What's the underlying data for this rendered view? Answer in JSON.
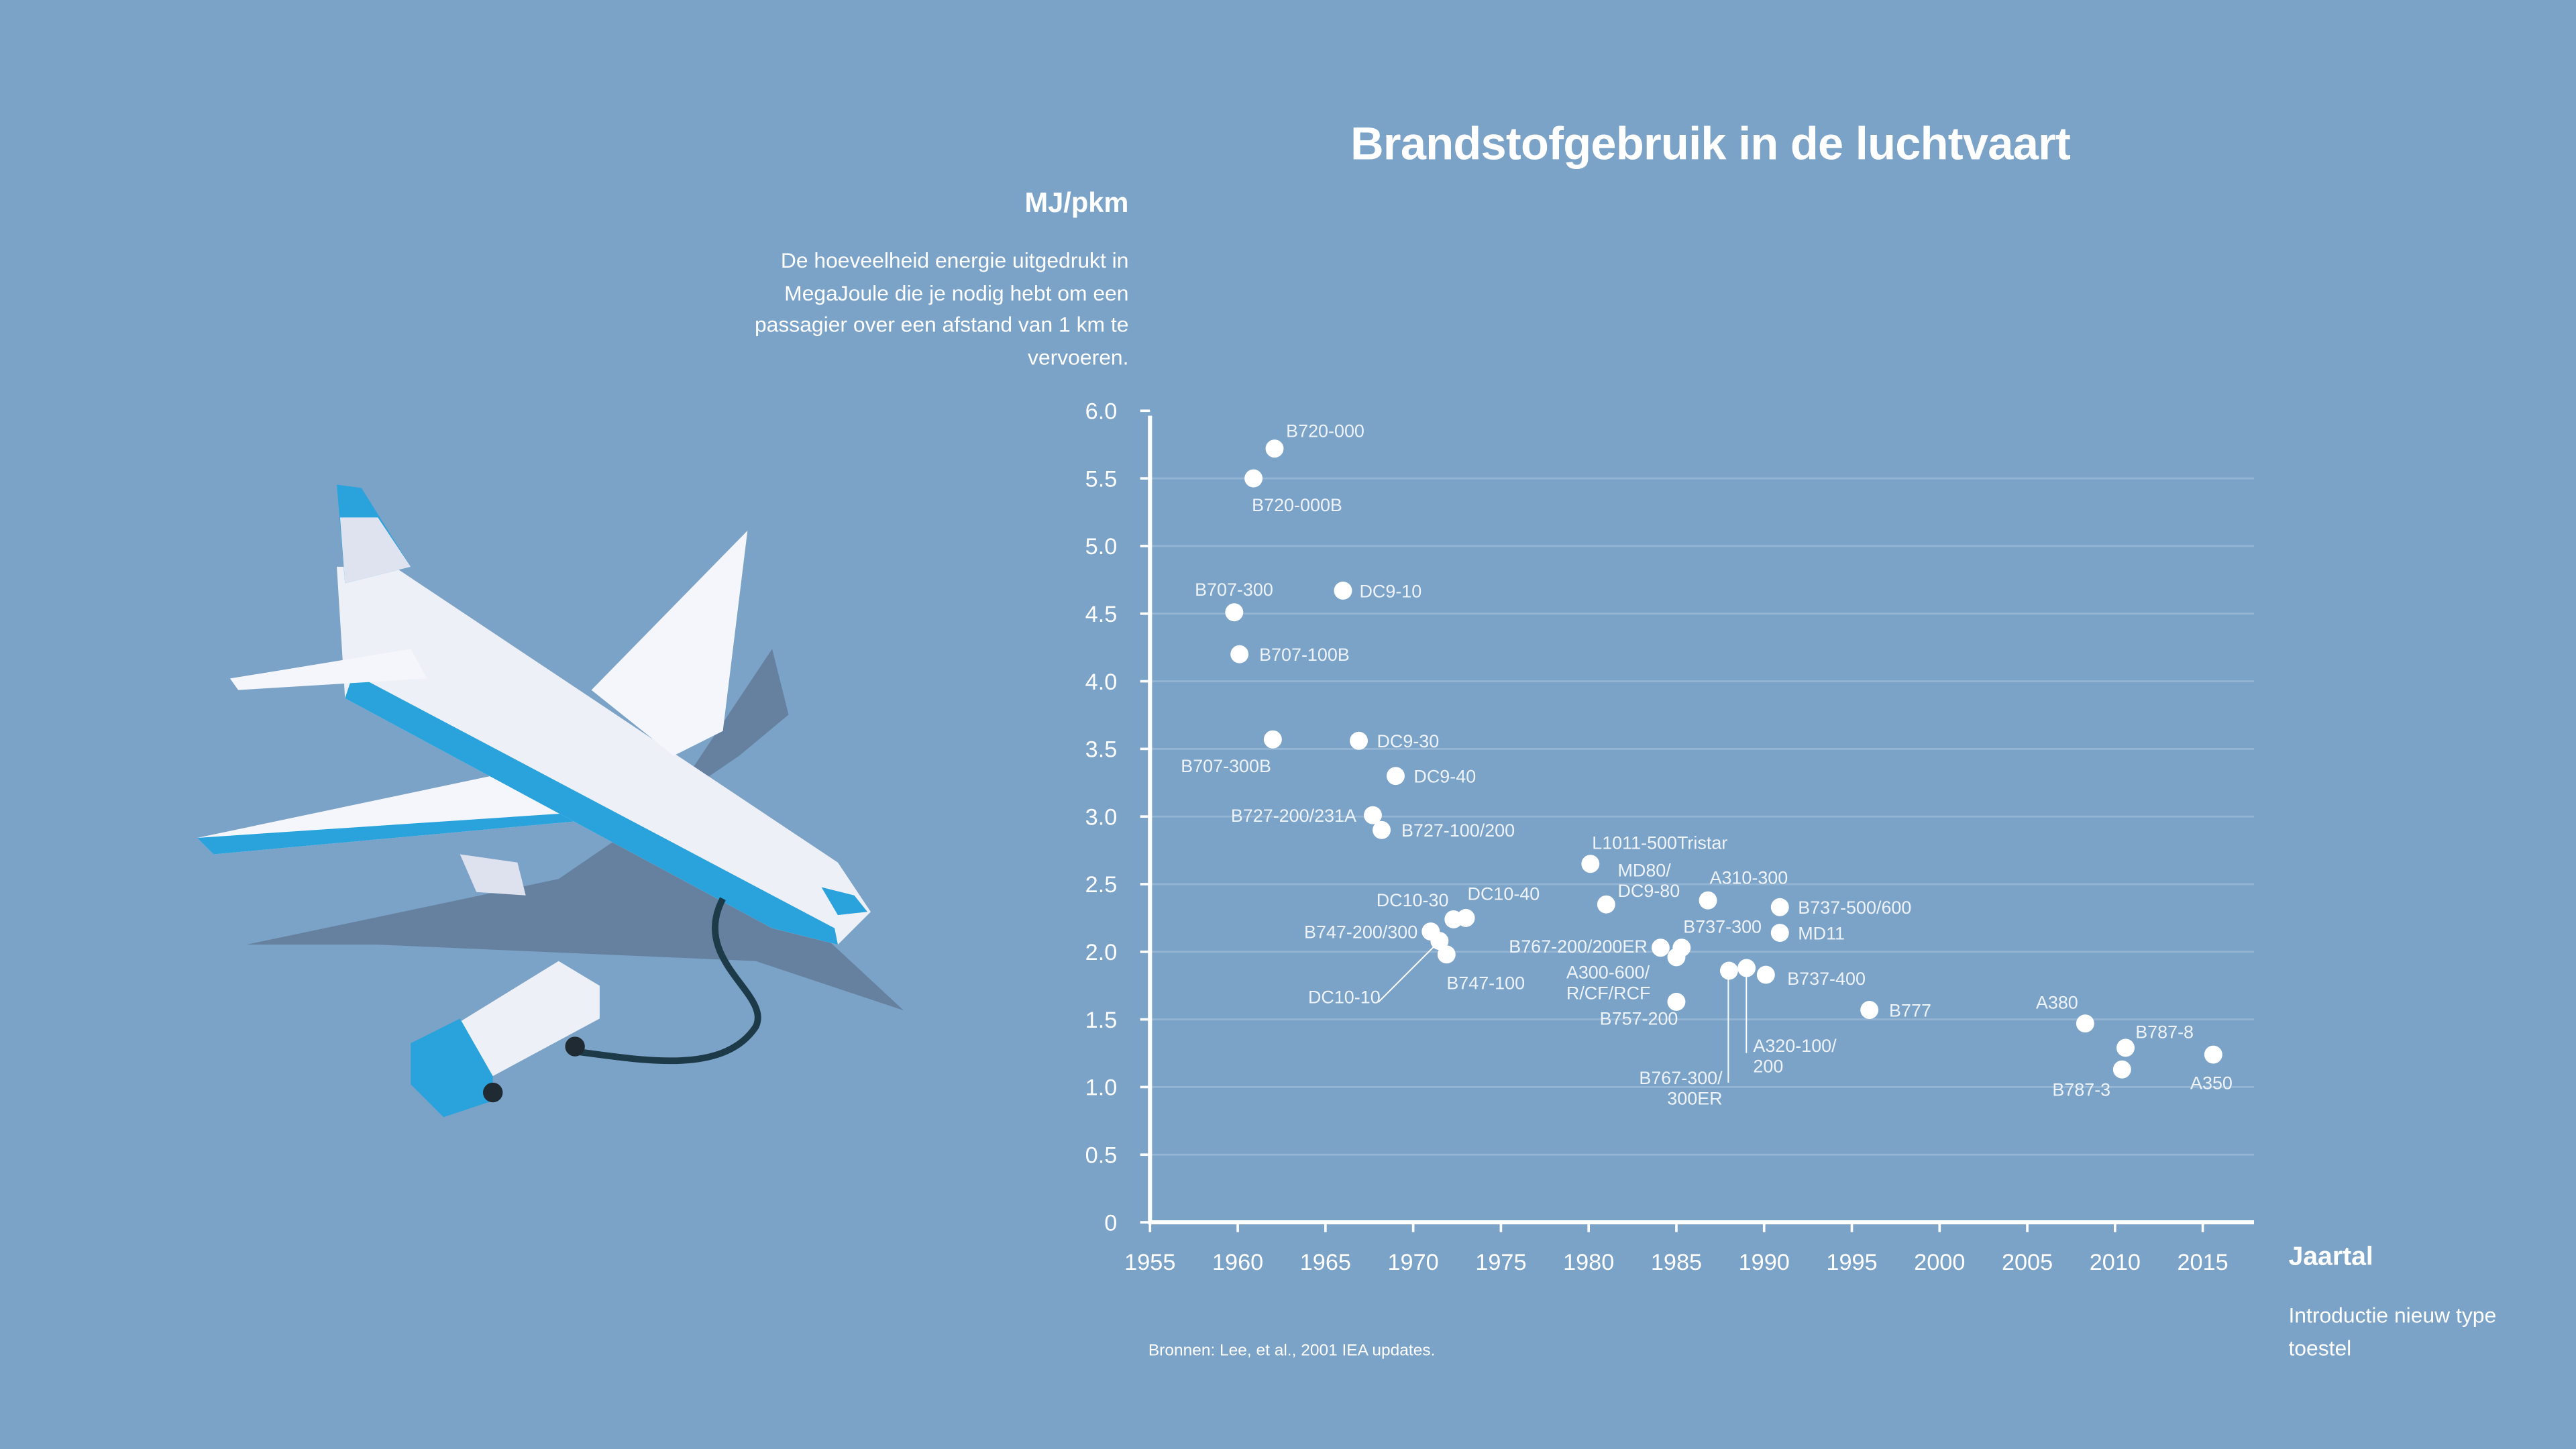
{
  "title": "Brandstofgebruik in de luchtvaart",
  "y_axis": {
    "unit": "MJ/pkm",
    "description": "De hoeveelheid energie uitgedrukt in MegaJoule die je nodig hebt om een passagier over een afstand van 1 km te vervoeren."
  },
  "x_axis": {
    "unit": "Jaartal",
    "description": "Introductie nieuw type toestel"
  },
  "source": "Bronnen: Lee, et al., 2001 IEA updates.",
  "colors": {
    "background": "#7ba2c7",
    "points": "#ffffff",
    "grid": "#93b4d3"
  },
  "chart_data": {
    "type": "scatter",
    "title": "Brandstofgebruik in de luchtvaart",
    "xlabel": "Jaartal",
    "ylabel": "MJ/pkm",
    "xlim": [
      1955,
      2017
    ],
    "ylim": [
      0,
      6.0
    ],
    "x_ticks": [
      "1955",
      "1960",
      "1965",
      "1970",
      "1975",
      "1980",
      "1985",
      "1990",
      "1995",
      "2000",
      "2005",
      "2010",
      "2015"
    ],
    "y_ticks": [
      "0",
      "0.5",
      "1.0",
      "1.5",
      "2.0",
      "2.5",
      "3.0",
      "3.5",
      "4.0",
      "4.5",
      "5.0",
      "5.5",
      "6.0"
    ],
    "grid": "horizontal",
    "points": [
      {
        "label": [
          "B720-000"
        ],
        "x": 1962.1,
        "y": 5.72
      },
      {
        "label": [
          "B720-000B"
        ],
        "x": 1960.9,
        "y": 5.5
      },
      {
        "label": [
          "B707-300"
        ],
        "x": 1959.8,
        "y": 4.51
      },
      {
        "label": [
          "DC9-10"
        ],
        "x": 1966.0,
        "y": 4.67
      },
      {
        "label": [
          "B707-100B"
        ],
        "x": 1960.1,
        "y": 4.2
      },
      {
        "label": [
          "B707-300B"
        ],
        "x": 1962.0,
        "y": 3.57
      },
      {
        "label": [
          "DC9-30"
        ],
        "x": 1966.9,
        "y": 3.56
      },
      {
        "label": [
          "DC9-40"
        ],
        "x": 1969.0,
        "y": 3.3
      },
      {
        "label": [
          "B727-200/231A"
        ],
        "x": 1967.7,
        "y": 3.01
      },
      {
        "label": [
          "B727-100/200"
        ],
        "x": 1968.2,
        "y": 2.9
      },
      {
        "label": [
          "L1011-500Tristar"
        ],
        "x": 1980.1,
        "y": 2.65
      },
      {
        "label": [
          "MD80/",
          "DC9-80"
        ],
        "x": 1981.0,
        "y": 2.35
      },
      {
        "label": [
          "A310-300"
        ],
        "x": 1986.8,
        "y": 2.38
      },
      {
        "label": [
          "B737-500/600"
        ],
        "x": 1990.9,
        "y": 2.33
      },
      {
        "label": [
          "MD11"
        ],
        "x": 1990.9,
        "y": 2.14
      },
      {
        "label": [
          "DC10-30"
        ],
        "x": 1972.3,
        "y": 2.24
      },
      {
        "label": [
          "DC10-40"
        ],
        "x": 1973.0,
        "y": 2.25
      },
      {
        "label": [
          "B747-200/300"
        ],
        "x": 1971.0,
        "y": 2.15
      },
      {
        "label": [
          "DC10-10"
        ],
        "x": 1971.5,
        "y": 2.08
      },
      {
        "label": [
          "B747-100"
        ],
        "x": 1971.9,
        "y": 1.98
      },
      {
        "label": [
          "B767-200/200ER"
        ],
        "x": 1984.1,
        "y": 2.03
      },
      {
        "label": [
          "B737-300"
        ],
        "x": 1985.3,
        "y": 2.03
      },
      {
        "label": [
          "A300-600/",
          "R/CF/RCF"
        ],
        "x": 1985.0,
        "y": 1.96
      },
      {
        "label": [
          "B767-300/",
          "300ER"
        ],
        "x": 1988.0,
        "y": 1.86
      },
      {
        "label": [
          "A320-100/",
          "200"
        ],
        "x": 1989.0,
        "y": 1.88
      },
      {
        "label": [
          "B737-400"
        ],
        "x": 1990.1,
        "y": 1.83
      },
      {
        "label": [
          "B757-200"
        ],
        "x": 1985.0,
        "y": 1.63
      },
      {
        "label": [
          "B777"
        ],
        "x": 1996.0,
        "y": 1.57
      },
      {
        "label": [
          "A380"
        ],
        "x": 2008.3,
        "y": 1.47
      },
      {
        "label": [
          "B787-8"
        ],
        "x": 2010.6,
        "y": 1.29
      },
      {
        "label": [
          "B787-3"
        ],
        "x": 2010.4,
        "y": 1.13
      },
      {
        "label": [
          "A350"
        ],
        "x": 2015.6,
        "y": 1.24
      }
    ]
  }
}
